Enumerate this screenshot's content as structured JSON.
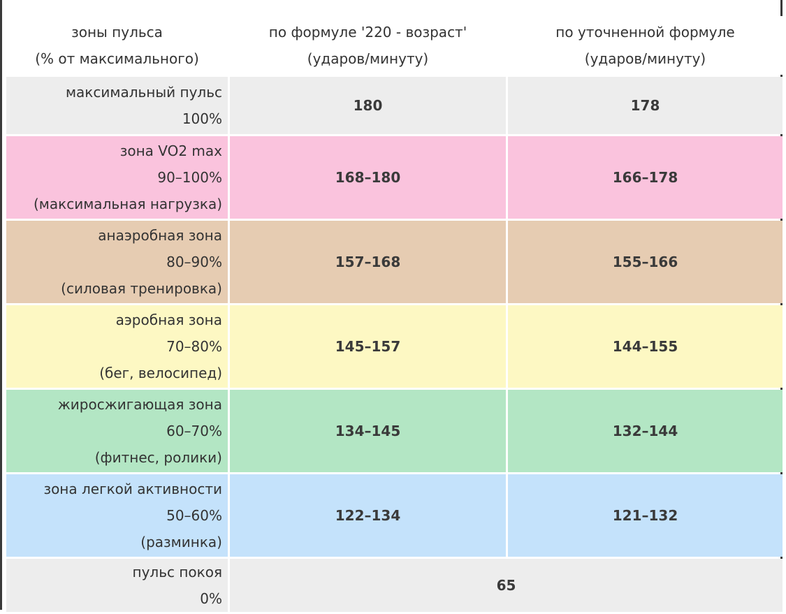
{
  "header": {
    "col1_line1": "зоны пульса",
    "col1_line2": "(% от максимального)",
    "col2_line1": "по формуле '220 - возраст'",
    "col2_line2": "(ударов/минуту)",
    "col3_line1": "по уточненной формуле",
    "col3_line2": "(ударов/минуту)"
  },
  "rows": [
    {
      "zone": "максимальный пульс",
      "percent": "100%",
      "note": "",
      "formula_220": "180",
      "refined": "178",
      "color": "#ededed"
    },
    {
      "zone": "зона VO2 max",
      "percent": "90–100%",
      "note": "(максимальная нагрузка)",
      "formula_220": "168–180",
      "refined": "166–178",
      "color": "#fac3dd"
    },
    {
      "zone": "анаэробная зона",
      "percent": "80–90%",
      "note": "(силовая тренировка)",
      "formula_220": "157–168",
      "refined": "155–166",
      "color": "#e6ccb2"
    },
    {
      "zone": "аэробная зона",
      "percent": "70–80%",
      "note": "(бег, велосипед)",
      "formula_220": "145–157",
      "refined": "144–155",
      "color": "#fdf8c3"
    },
    {
      "zone": "жиросжигающая зона",
      "percent": "60–70%",
      "note": "(фитнес, ролики)",
      "formula_220": "134–145",
      "refined": "132–144",
      "color": "#b3e6c4"
    },
    {
      "zone": "зона легкой активности",
      "percent": "50–60%",
      "note": "(разминка)",
      "formula_220": "122–134",
      "refined": "121–132",
      "color": "#c4e2fb"
    }
  ],
  "rest_row": {
    "zone": "пульс покоя",
    "percent": "0%",
    "value": "65",
    "color": "#ededed"
  }
}
